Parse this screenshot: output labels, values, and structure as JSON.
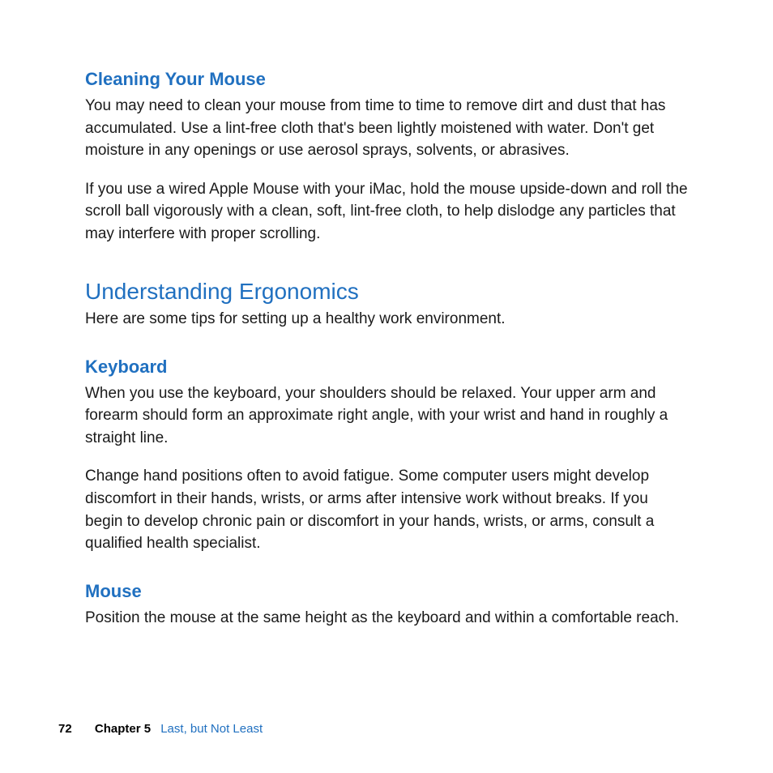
{
  "colors": {
    "heading_blue": "#2070c0",
    "subheading_blue": "#2070c0",
    "body_text": "#1a1a1a",
    "footer_black": "#000000",
    "chapter_title_blue": "#2070c0",
    "background": "#ffffff"
  },
  "typography": {
    "subheading_fontsize": 22,
    "section_heading_fontsize": 28,
    "body_fontsize": 19,
    "footer_fontsize": 15
  },
  "sections": {
    "cleaning_mouse": {
      "heading": "Cleaning Your Mouse",
      "para1": "You may need to clean your mouse from time to time to remove dirt and dust that has accumulated. Use a lint-free cloth that's been lightly moistened with water. Don't get moisture in any openings or use aerosol sprays, solvents, or abrasives.",
      "para2": "If you use a wired Apple Mouse with your iMac, hold the mouse upside-down and roll the scroll ball vigorously with a clean, soft, lint-free cloth, to help dislodge any particles that may interfere with proper scrolling."
    },
    "ergonomics": {
      "heading": "Understanding Ergonomics",
      "intro": "Here are some tips for setting up a healthy work environment."
    },
    "keyboard": {
      "heading": "Keyboard",
      "para1": "When you use the keyboard, your shoulders should be relaxed. Your upper arm and forearm should form an approximate right angle, with your wrist and hand in roughly a straight line.",
      "para2": "Change hand positions often to avoid fatigue. Some computer users might develop discomfort in their hands, wrists, or arms after intensive work without breaks. If you begin to develop chronic pain or discomfort in your hands, wrists, or arms, consult a qualified health specialist."
    },
    "mouse": {
      "heading": "Mouse",
      "para1": "Position the mouse at the same height as the keyboard and within a comfortable reach."
    }
  },
  "footer": {
    "page_number": "72",
    "chapter_label": "Chapter 5",
    "chapter_title": "Last, but Not Least"
  }
}
